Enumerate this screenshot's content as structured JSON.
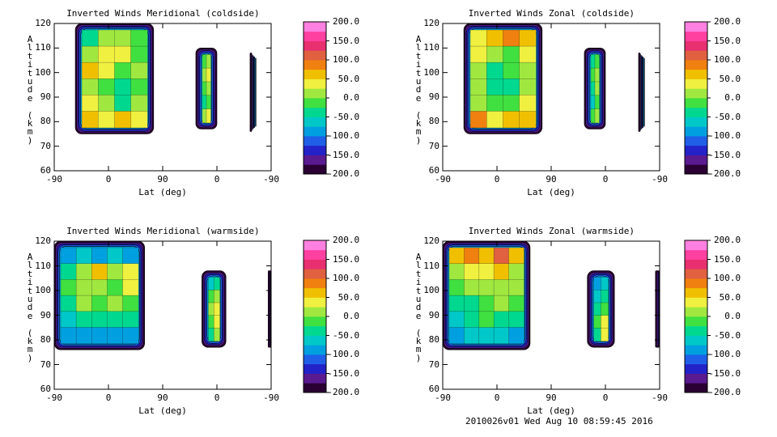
{
  "chart_data": [
    {
      "type": "heatmap",
      "title": "Inverted Winds Meridional (coldside)",
      "xlabel": "Lat (deg)",
      "ylabel": "Altitude (km)",
      "x_ticks": [
        "-90",
        "0",
        "90",
        "0",
        "-90"
      ],
      "y_ticks": [
        "60",
        "70",
        "80",
        "90",
        "100",
        "110",
        "120"
      ],
      "ylim": [
        60,
        120
      ],
      "grid": false,
      "colorbar": {
        "min": -200,
        "max": 200,
        "ticks": [
          "200.0",
          "150.0",
          "100.0",
          "50.0",
          "0.0",
          "-50.0",
          "-100.0",
          "-150.0",
          "-200.0"
        ]
      },
      "blobs": [
        {
          "lat": [
            -55,
            75
          ],
          "alt": [
            75,
            120
          ],
          "values": [
            [
              -30,
              10,
              20,
              -10
            ],
            [
              20,
              40,
              30,
              -20
            ],
            [
              60,
              30,
              -10,
              10
            ],
            [
              20,
              -20,
              -40,
              -10
            ],
            [
              40,
              10,
              -30,
              20
            ],
            [
              50,
              40,
              60,
              30
            ]
          ]
        },
        {
          "lat": [
            145,
            180
          ],
          "alt": [
            77,
            110
          ],
          "values": [
            [
              -20,
              0
            ],
            [
              10,
              40
            ],
            [
              -10,
              20
            ],
            [
              -30,
              -10
            ],
            [
              0,
              30
            ]
          ]
        },
        {
          "lat": [
            235,
            236
          ],
          "alt": [
            76,
            108
          ],
          "values": [
            [
              0
            ]
          ]
        }
      ]
    },
    {
      "type": "heatmap",
      "title": "Inverted Winds Zonal (coldside)",
      "xlabel": "Lat (deg)",
      "ylabel": "Altitude (km)",
      "x_ticks": [
        "-90",
        "0",
        "90",
        "0",
        "-90"
      ],
      "y_ticks": [
        "60",
        "70",
        "80",
        "90",
        "100",
        "110",
        "120"
      ],
      "ylim": [
        60,
        120
      ],
      "grid": false,
      "colorbar": {
        "min": -200,
        "max": 200,
        "ticks": [
          "200.0",
          "150.0",
          "100.0",
          "50.0",
          "0.0",
          "-50.0",
          "-100.0",
          "-150.0",
          "-200.0"
        ]
      },
      "blobs": [
        {
          "lat": [
            -55,
            75
          ],
          "alt": [
            75,
            120
          ],
          "values": [
            [
              40,
              60,
              80,
              60
            ],
            [
              30,
              10,
              -20,
              40
            ],
            [
              20,
              -30,
              -10,
              20
            ],
            [
              0,
              -40,
              -30,
              10
            ],
            [
              10,
              -10,
              -20,
              30
            ],
            [
              80,
              40,
              60,
              50
            ]
          ]
        },
        {
          "lat": [
            145,
            180
          ],
          "alt": [
            77,
            110
          ],
          "values": [
            [
              -30,
              -10
            ],
            [
              -10,
              20
            ],
            [
              -40,
              0
            ],
            [
              -60,
              -20
            ],
            [
              -20,
              10
            ]
          ]
        },
        {
          "lat": [
            235,
            236
          ],
          "alt": [
            76,
            108
          ],
          "values": [
            [
              0
            ]
          ]
        }
      ]
    },
    {
      "type": "heatmap",
      "title": "Inverted Winds Meridional (warmside)",
      "xlabel": "Lat (deg)",
      "ylabel": "Altitude (km)",
      "x_ticks": [
        "-90",
        "0",
        "90",
        "0",
        "-90"
      ],
      "y_ticks": [
        "60",
        "70",
        "80",
        "90",
        "100",
        "110",
        "120"
      ],
      "ylim": [
        60,
        120
      ],
      "grid": false,
      "colorbar": {
        "min": -200,
        "max": 200,
        "ticks": [
          "200.0",
          "150.0",
          "100.0",
          "50.0",
          "0.0",
          "-50.0",
          "-100.0",
          "-150.0",
          "-200.0"
        ]
      },
      "blobs": [
        {
          "lat": [
            -90,
            60
          ],
          "alt": [
            76,
            120
          ],
          "values": [
            [
              -80,
              -60,
              -100,
              -70,
              -90
            ],
            [
              -40,
              10,
              50,
              0,
              40
            ],
            [
              -20,
              20,
              0,
              -10,
              30
            ],
            [
              -30,
              0,
              -20,
              10,
              -10
            ],
            [
              -60,
              -40,
              -50,
              -30,
              -40
            ],
            [
              -90,
              -80,
              -90,
              -80,
              -90
            ]
          ]
        },
        {
          "lat": [
            155,
            195
          ],
          "alt": [
            77,
            108
          ],
          "values": [
            [
              -60,
              -30
            ],
            [
              -20,
              20
            ],
            [
              0,
              40
            ],
            [
              -10,
              30
            ],
            [
              -40,
              10
            ]
          ]
        },
        {
          "lat": [
            265,
            270
          ],
          "alt": [
            77,
            108
          ],
          "values": [
            [
              -60
            ]
          ]
        }
      ]
    },
    {
      "type": "heatmap",
      "title": "Inverted Winds Zonal (warmside)",
      "xlabel": "Lat (deg)",
      "ylabel": "Altitude (km)",
      "x_ticks": [
        "-90",
        "0",
        "90",
        "0",
        "-90"
      ],
      "y_ticks": [
        "60",
        "70",
        "80",
        "90",
        "100",
        "110",
        "120"
      ],
      "ylim": [
        60,
        120
      ],
      "grid": false,
      "colorbar": {
        "min": -200,
        "max": 200,
        "ticks": [
          "200.0",
          "150.0",
          "100.0",
          "50.0",
          "0.0",
          "-50.0",
          "-100.0",
          "-150.0",
          "-200.0"
        ]
      },
      "blobs": [
        {
          "lat": [
            -90,
            55
          ],
          "alt": [
            76,
            120
          ],
          "values": [
            [
              60,
              80,
              60,
              100,
              60
            ],
            [
              20,
              40,
              30,
              60,
              20
            ],
            [
              -20,
              0,
              10,
              20,
              0
            ],
            [
              -50,
              -30,
              -10,
              0,
              -20
            ],
            [
              -60,
              -40,
              -20,
              -30,
              -40
            ],
            [
              -80,
              -70,
              -60,
              -70,
              -80
            ]
          ]
        },
        {
          "lat": [
            150,
            195
          ],
          "alt": [
            77,
            108
          ],
          "values": [
            [
              -80,
              -60
            ],
            [
              -60,
              -30
            ],
            [
              -40,
              -10
            ],
            [
              -20,
              40
            ],
            [
              -30,
              30
            ]
          ]
        },
        {
          "lat": [
            263,
            270
          ],
          "alt": [
            77,
            108
          ],
          "values": [
            [
              -90
            ]
          ]
        }
      ]
    }
  ],
  "footer": "2010026v01 Wed Aug 10 08:59:45 2016",
  "colorscale": [
    "#2a0033",
    "#5a1a90",
    "#2222c8",
    "#1f5fe8",
    "#00a0e0",
    "#00c8c8",
    "#00d890",
    "#40e040",
    "#a0e840",
    "#f0f040",
    "#f0c000",
    "#f08010",
    "#e06040",
    "#e83070",
    "#ff40a0",
    "#ff80e0"
  ]
}
